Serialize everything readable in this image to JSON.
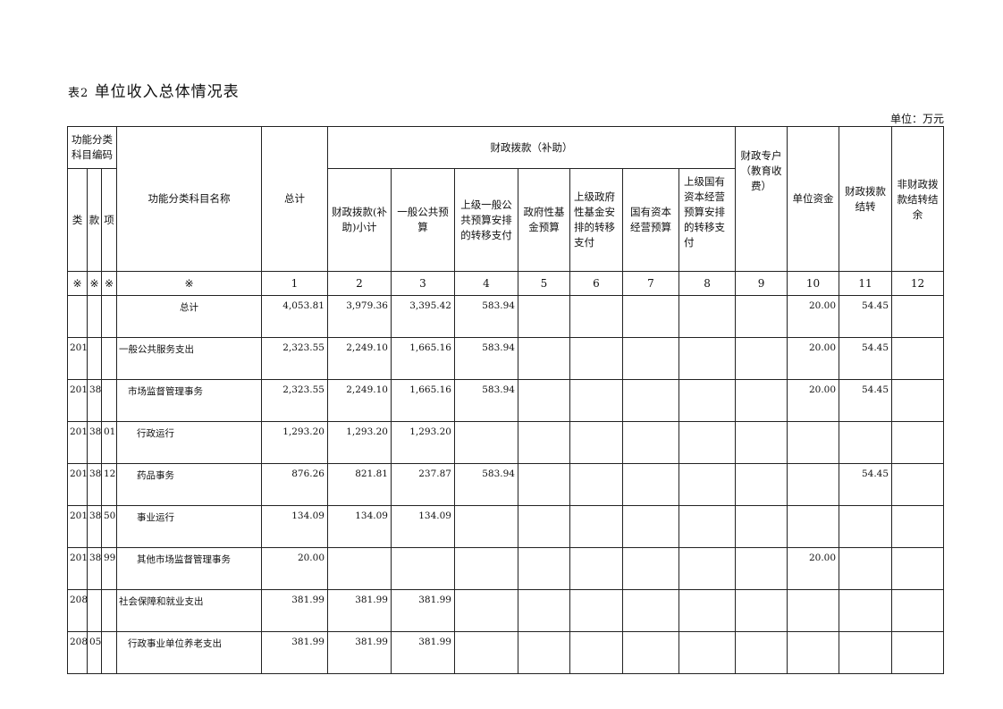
{
  "title_prefix": "表2",
  "title": "单位收入总体情况表",
  "unit": "单位：万元",
  "headers": {
    "code_group": "功能分类科目编码",
    "lei": "类",
    "kuan": "款",
    "xiang": "项",
    "name": "功能分类科目名称",
    "total": "总计",
    "fiscal_group": "财政拨款（补助）",
    "c2": "财政拨款(补助)小计",
    "c3": "一般公共预算",
    "c4": "上级一般公共预算安排的转移支付",
    "c5": "政府性基金预算",
    "c6": "上级政府性基金安排的转移支付",
    "c7": "国有资本经营预算",
    "c8": "上级国有资本经营预算安排的转移支付",
    "c9": "财政专户（教育收费）",
    "c10": "单位资金",
    "c11": "财政拨款结转",
    "c12": "非财政拨款结转结余"
  },
  "index_row": [
    "※",
    "※",
    "※",
    "※",
    "1",
    "2",
    "3",
    "4",
    "5",
    "6",
    "7",
    "8",
    "9",
    "10",
    "11",
    "12"
  ],
  "rows": [
    {
      "lei": "",
      "kuan": "",
      "xiang": "",
      "name": "总计",
      "level": "c",
      "v": [
        "4,053.81",
        "3,979.36",
        "3,395.42",
        "583.94",
        "",
        "",
        "",
        "",
        "",
        "20.00",
        "54.45",
        ""
      ]
    },
    {
      "lei": "201",
      "kuan": "",
      "xiang": "",
      "name": "一般公共服务支出",
      "level": "0",
      "v": [
        "2,323.55",
        "2,249.10",
        "1,665.16",
        "583.94",
        "",
        "",
        "",
        "",
        "",
        "20.00",
        "54.45",
        ""
      ]
    },
    {
      "lei": "201",
      "kuan": "38",
      "xiang": "",
      "name": "市场监督管理事务",
      "level": "1",
      "v": [
        "2,323.55",
        "2,249.10",
        "1,665.16",
        "583.94",
        "",
        "",
        "",
        "",
        "",
        "20.00",
        "54.45",
        ""
      ]
    },
    {
      "lei": "201",
      "kuan": "38",
      "xiang": "01",
      "name": "行政运行",
      "level": "2",
      "v": [
        "1,293.20",
        "1,293.20",
        "1,293.20",
        "",
        "",
        "",
        "",
        "",
        "",
        "",
        "",
        ""
      ]
    },
    {
      "lei": "201",
      "kuan": "38",
      "xiang": "12",
      "name": "药品事务",
      "level": "2",
      "v": [
        "876.26",
        "821.81",
        "237.87",
        "583.94",
        "",
        "",
        "",
        "",
        "",
        "",
        "54.45",
        ""
      ]
    },
    {
      "lei": "201",
      "kuan": "38",
      "xiang": "50",
      "name": "事业运行",
      "level": "2",
      "v": [
        "134.09",
        "134.09",
        "134.09",
        "",
        "",
        "",
        "",
        "",
        "",
        "",
        "",
        ""
      ]
    },
    {
      "lei": "201",
      "kuan": "38",
      "xiang": "99",
      "name": "其他市场监督管理事务",
      "level": "2",
      "v": [
        "20.00",
        "",
        "",
        "",
        "",
        "",
        "",
        "",
        "",
        "20.00",
        "",
        ""
      ]
    },
    {
      "lei": "208",
      "kuan": "",
      "xiang": "",
      "name": "社会保障和就业支出",
      "level": "0",
      "v": [
        "381.99",
        "381.99",
        "381.99",
        "",
        "",
        "",
        "",
        "",
        "",
        "",
        "",
        ""
      ]
    },
    {
      "lei": "208",
      "kuan": "05",
      "xiang": "",
      "name": "行政事业单位养老支出",
      "level": "1",
      "v": [
        "381.99",
        "381.99",
        "381.99",
        "",
        "",
        "",
        "",
        "",
        "",
        "",
        "",
        ""
      ]
    }
  ]
}
